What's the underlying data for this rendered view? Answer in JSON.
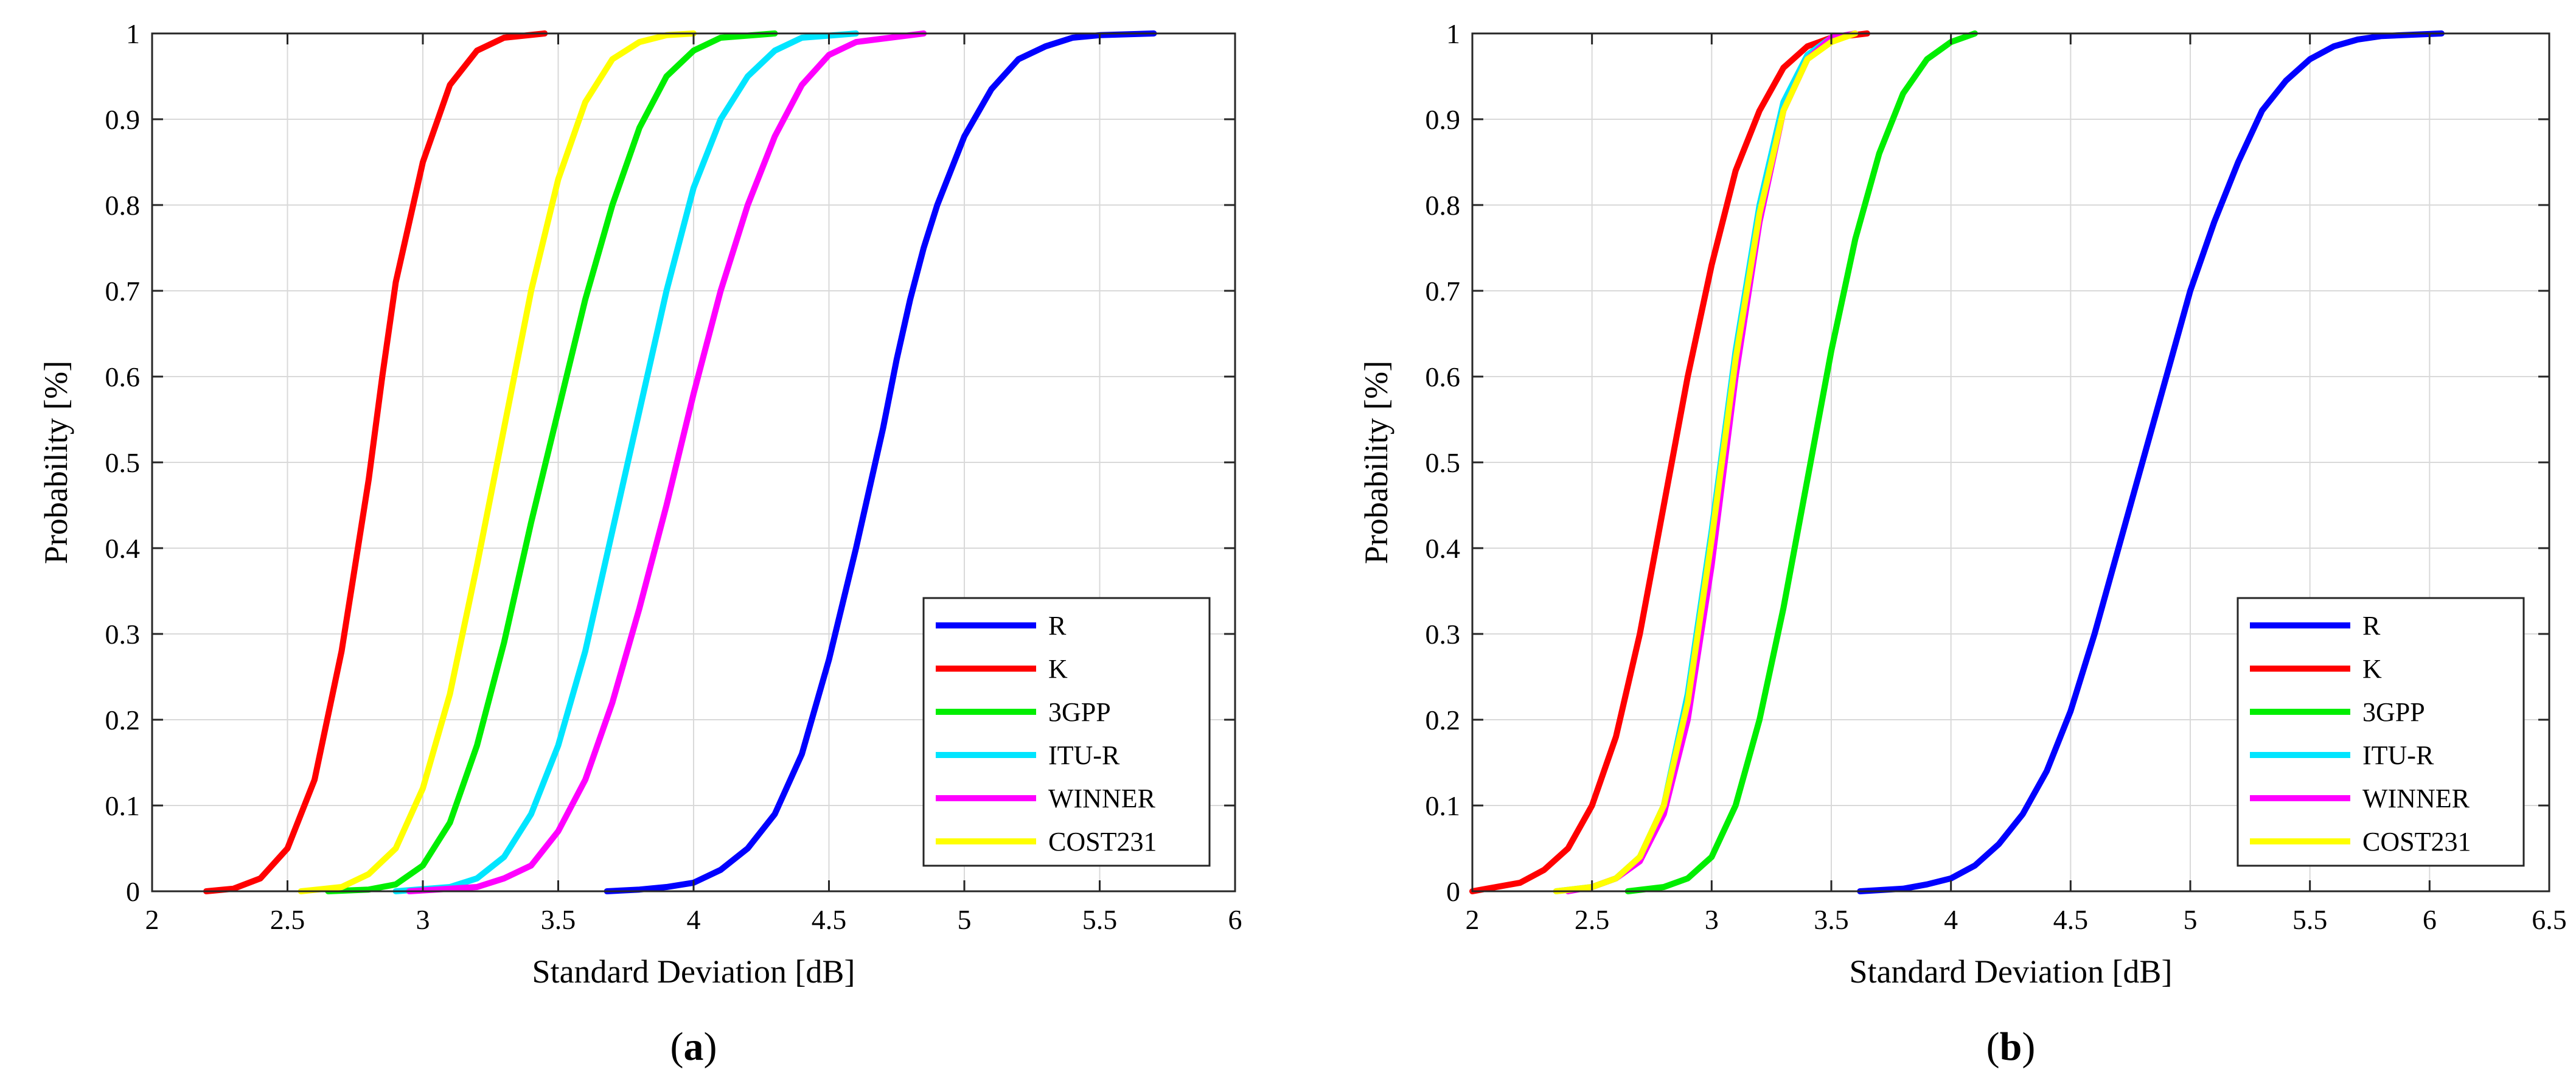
{
  "chart_data": [
    {
      "type": "line",
      "panel": "a",
      "caption_open": "(",
      "caption_letter": "a",
      "caption_close": ")",
      "xlabel": "Standard Deviation [dB]",
      "ylabel": "Probability [%]",
      "xlim": [
        2,
        6
      ],
      "ylim": [
        0,
        1
      ],
      "xticks": [
        2,
        2.5,
        3,
        3.5,
        4,
        4.5,
        5,
        5.5,
        6
      ],
      "xtick_labels": [
        "2",
        "2.5",
        "3",
        "3.5",
        "4",
        "4.5",
        "5",
        "5.5",
        "6"
      ],
      "yticks": [
        0,
        0.1,
        0.2,
        0.3,
        0.4,
        0.5,
        0.6,
        0.7,
        0.8,
        0.9,
        1
      ],
      "ytick_labels": [
        "0",
        "0.1",
        "0.2",
        "0.3",
        "0.4",
        "0.5",
        "0.6",
        "0.7",
        "0.8",
        "0.9",
        "1"
      ],
      "grid": true,
      "legend_position": "bottom-right",
      "series": [
        {
          "name": "R",
          "color": "#0000ff",
          "x": [
            3.68,
            3.8,
            3.9,
            4.0,
            4.1,
            4.2,
            4.3,
            4.4,
            4.5,
            4.6,
            4.7,
            4.75,
            4.8,
            4.85,
            4.9,
            5.0,
            5.1,
            5.2,
            5.3,
            5.4,
            5.5,
            5.7
          ],
          "y": [
            0,
            0.002,
            0.005,
            0.01,
            0.025,
            0.05,
            0.09,
            0.16,
            0.27,
            0.4,
            0.54,
            0.62,
            0.69,
            0.75,
            0.8,
            0.88,
            0.935,
            0.97,
            0.985,
            0.995,
            0.998,
            1
          ]
        },
        {
          "name": "K",
          "color": "#ff0000",
          "x": [
            2.2,
            2.3,
            2.4,
            2.5,
            2.6,
            2.7,
            2.75,
            2.8,
            2.85,
            2.9,
            3.0,
            3.1,
            3.2,
            3.3,
            3.45
          ],
          "y": [
            0,
            0.003,
            0.015,
            0.05,
            0.13,
            0.28,
            0.38,
            0.48,
            0.6,
            0.71,
            0.85,
            0.94,
            0.98,
            0.995,
            1
          ]
        },
        {
          "name": "3GPP",
          "color": "#00ee00",
          "x": [
            2.65,
            2.8,
            2.9,
            3.0,
            3.1,
            3.2,
            3.3,
            3.4,
            3.5,
            3.6,
            3.7,
            3.8,
            3.9,
            4.0,
            4.1,
            4.3
          ],
          "y": [
            0,
            0.002,
            0.008,
            0.03,
            0.08,
            0.17,
            0.29,
            0.43,
            0.56,
            0.69,
            0.8,
            0.89,
            0.95,
            0.98,
            0.995,
            1
          ]
        },
        {
          "name": "ITU-R",
          "color": "#00e5ff",
          "x": [
            2.9,
            3.1,
            3.2,
            3.3,
            3.4,
            3.5,
            3.6,
            3.7,
            3.8,
            3.9,
            4.0,
            4.1,
            4.2,
            4.3,
            4.4,
            4.6
          ],
          "y": [
            0,
            0.005,
            0.015,
            0.04,
            0.09,
            0.17,
            0.28,
            0.42,
            0.56,
            0.7,
            0.82,
            0.9,
            0.95,
            0.98,
            0.995,
            1
          ]
        },
        {
          "name": "WINNER",
          "color": "#ff00ff",
          "x": [
            2.95,
            3.2,
            3.3,
            3.4,
            3.5,
            3.6,
            3.7,
            3.8,
            3.9,
            4.0,
            4.1,
            4.2,
            4.3,
            4.4,
            4.5,
            4.6,
            4.85
          ],
          "y": [
            0,
            0.005,
            0.015,
            0.03,
            0.07,
            0.13,
            0.22,
            0.33,
            0.45,
            0.58,
            0.7,
            0.8,
            0.88,
            0.94,
            0.975,
            0.99,
            1
          ]
        },
        {
          "name": "COST231",
          "color": "#ffff00",
          "x": [
            2.55,
            2.7,
            2.8,
            2.9,
            3.0,
            3.1,
            3.2,
            3.3,
            3.4,
            3.5,
            3.6,
            3.7,
            3.8,
            3.9,
            4.0
          ],
          "y": [
            0,
            0.005,
            0.02,
            0.05,
            0.12,
            0.23,
            0.38,
            0.54,
            0.7,
            0.83,
            0.92,
            0.97,
            0.99,
            0.998,
            1
          ]
        }
      ]
    },
    {
      "type": "line",
      "panel": "b",
      "caption_open": "(",
      "caption_letter": "b",
      "caption_close": ")",
      "xlabel": "Standard Deviation [dB]",
      "ylabel": "Probability [%]",
      "xlim": [
        2,
        6.5
      ],
      "ylim": [
        0,
        1
      ],
      "xticks": [
        2,
        2.5,
        3,
        3.5,
        4,
        4.5,
        5,
        5.5,
        6,
        6.5
      ],
      "xtick_labels": [
        "2",
        "2.5",
        "3",
        "3.5",
        "4",
        "4.5",
        "5",
        "5.5",
        "6",
        "6.5"
      ],
      "yticks": [
        0,
        0.1,
        0.2,
        0.3,
        0.4,
        0.5,
        0.6,
        0.7,
        0.8,
        0.9,
        1
      ],
      "ytick_labels": [
        "0",
        "0.1",
        "0.2",
        "0.3",
        "0.4",
        "0.5",
        "0.6",
        "0.7",
        "0.8",
        "0.9",
        "1"
      ],
      "grid": true,
      "legend_position": "bottom-right",
      "series": [
        {
          "name": "R",
          "color": "#0000ff",
          "x": [
            3.62,
            3.8,
            3.9,
            4.0,
            4.1,
            4.2,
            4.3,
            4.4,
            4.5,
            4.6,
            4.7,
            4.8,
            4.9,
            5.0,
            5.1,
            5.2,
            5.3,
            5.4,
            5.5,
            5.6,
            5.7,
            5.8,
            6.05
          ],
          "y": [
            0,
            0.003,
            0.008,
            0.015,
            0.03,
            0.055,
            0.09,
            0.14,
            0.21,
            0.3,
            0.4,
            0.5,
            0.6,
            0.7,
            0.78,
            0.85,
            0.91,
            0.945,
            0.97,
            0.985,
            0.993,
            0.997,
            1
          ]
        },
        {
          "name": "K",
          "color": "#ff0000",
          "x": [
            2.0,
            2.2,
            2.3,
            2.4,
            2.5,
            2.6,
            2.7,
            2.8,
            2.9,
            3.0,
            3.1,
            3.2,
            3.3,
            3.4,
            3.5,
            3.65
          ],
          "y": [
            0,
            0.01,
            0.025,
            0.05,
            0.1,
            0.18,
            0.3,
            0.45,
            0.6,
            0.73,
            0.84,
            0.91,
            0.96,
            0.985,
            0.995,
            1
          ]
        },
        {
          "name": "3GPP",
          "color": "#00ee00",
          "x": [
            2.65,
            2.8,
            2.9,
            3.0,
            3.1,
            3.2,
            3.3,
            3.4,
            3.5,
            3.6,
            3.7,
            3.8,
            3.9,
            4.0,
            4.1
          ],
          "y": [
            0,
            0.005,
            0.015,
            0.04,
            0.1,
            0.2,
            0.33,
            0.48,
            0.63,
            0.76,
            0.86,
            0.93,
            0.97,
            0.99,
            1
          ]
        },
        {
          "name": "ITU-R",
          "color": "#00e5ff",
          "x": [
            2.35,
            2.5,
            2.6,
            2.7,
            2.8,
            2.9,
            3.0,
            3.1,
            3.2,
            3.3,
            3.4,
            3.5,
            3.6
          ],
          "y": [
            0,
            0.005,
            0.015,
            0.04,
            0.1,
            0.23,
            0.42,
            0.63,
            0.8,
            0.92,
            0.975,
            0.995,
            1
          ]
        },
        {
          "name": "WINNER",
          "color": "#ff00ff",
          "x": [
            2.4,
            2.5,
            2.6,
            2.7,
            2.8,
            2.9,
            3.0,
            3.1,
            3.2,
            3.3,
            3.4,
            3.5,
            3.6
          ],
          "y": [
            0,
            0.005,
            0.015,
            0.035,
            0.09,
            0.2,
            0.38,
            0.6,
            0.78,
            0.91,
            0.97,
            0.995,
            1
          ]
        },
        {
          "name": "COST231",
          "color": "#ffff00",
          "x": [
            2.35,
            2.5,
            2.6,
            2.7,
            2.8,
            2.9,
            3.0,
            3.1,
            3.2,
            3.3,
            3.4,
            3.5,
            3.6
          ],
          "y": [
            0,
            0.005,
            0.015,
            0.04,
            0.1,
            0.22,
            0.41,
            0.62,
            0.79,
            0.91,
            0.97,
            0.99,
            1
          ]
        }
      ]
    }
  ]
}
